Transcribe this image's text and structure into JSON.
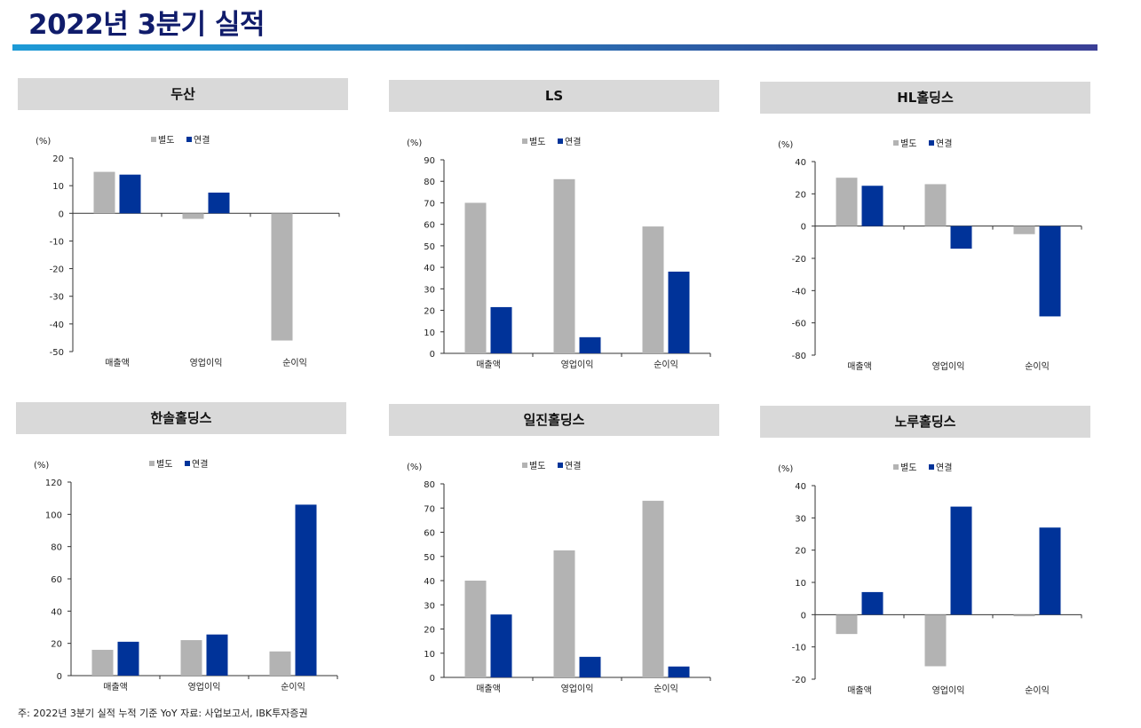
{
  "page": {
    "title": "2022년 3분기 실적",
    "footnote": "주: 2022년 3분기 실적 누적 기준 YoY 자료: 사업보고서, IBK투자증권"
  },
  "colors": {
    "separate": "#b3b3b3",
    "consolidated": "#003399",
    "title_bar": "#d9d9d9"
  },
  "chart_data": [
    {
      "type": "bar",
      "title": "두산",
      "unit_label": "(%)",
      "categories": [
        "매출액",
        "영업이익",
        "순이익"
      ],
      "series": [
        {
          "name": "별도",
          "values": [
            15,
            -2,
            -46
          ]
        },
        {
          "name": "연결",
          "values": [
            14,
            7.5,
            0
          ]
        }
      ],
      "ylim": [
        -50,
        20
      ],
      "yticks": [
        20,
        10,
        0,
        -10,
        -20,
        -30,
        -40,
        -50
      ],
      "grid": false,
      "legend": "top"
    },
    {
      "type": "bar",
      "title": "LS",
      "unit_label": "(%)",
      "categories": [
        "매출액",
        "영업이익",
        "순이익"
      ],
      "series": [
        {
          "name": "별도",
          "values": [
            70,
            81,
            59
          ]
        },
        {
          "name": "연결",
          "values": [
            21.5,
            7.5,
            38
          ]
        }
      ],
      "ylim": [
        0,
        90
      ],
      "yticks": [
        90,
        80,
        70,
        60,
        50,
        40,
        30,
        20,
        10,
        0
      ],
      "grid": false,
      "legend": "top"
    },
    {
      "type": "bar",
      "title": "HL홀딩스",
      "unit_label": "(%)",
      "categories": [
        "매출액",
        "영업이익",
        "순이익"
      ],
      "series": [
        {
          "name": "별도",
          "values": [
            30,
            26,
            -5
          ]
        },
        {
          "name": "연결",
          "values": [
            25,
            -14,
            -56
          ]
        }
      ],
      "ylim": [
        -80,
        40
      ],
      "yticks": [
        40,
        20,
        0,
        -20,
        -40,
        -60,
        -80
      ],
      "grid": false,
      "legend": "top"
    },
    {
      "type": "bar",
      "title": "한솔홀딩스",
      "unit_label": "(%)",
      "categories": [
        "매출액",
        "영업이익",
        "순이익"
      ],
      "series": [
        {
          "name": "별도",
          "values": [
            16,
            22,
            15
          ]
        },
        {
          "name": "연결",
          "values": [
            21,
            25.5,
            106
          ]
        }
      ],
      "ylim": [
        0,
        120
      ],
      "yticks": [
        120,
        100,
        80,
        60,
        40,
        20,
        0
      ],
      "grid": false,
      "legend": "top"
    },
    {
      "type": "bar",
      "title": "일진홀딩스",
      "unit_label": "(%)",
      "categories": [
        "매출액",
        "영업이익",
        "순이익"
      ],
      "series": [
        {
          "name": "별도",
          "values": [
            40,
            52.5,
            73
          ]
        },
        {
          "name": "연결",
          "values": [
            26,
            8.5,
            4.5
          ]
        }
      ],
      "ylim": [
        0,
        80
      ],
      "yticks": [
        80,
        70,
        60,
        50,
        40,
        30,
        20,
        10,
        0
      ],
      "grid": false,
      "legend": "top"
    },
    {
      "type": "bar",
      "title": "노루홀딩스",
      "unit_label": "(%)",
      "categories": [
        "매출액",
        "영업이익",
        "순이익"
      ],
      "series": [
        {
          "name": "별도",
          "values": [
            -6,
            -16,
            -0.5
          ]
        },
        {
          "name": "연결",
          "values": [
            7,
            33.5,
            27
          ]
        }
      ],
      "ylim": [
        -20,
        40
      ],
      "yticks": [
        40,
        30,
        20,
        10,
        0,
        -10,
        -20
      ],
      "grid": false,
      "legend": "top"
    }
  ]
}
